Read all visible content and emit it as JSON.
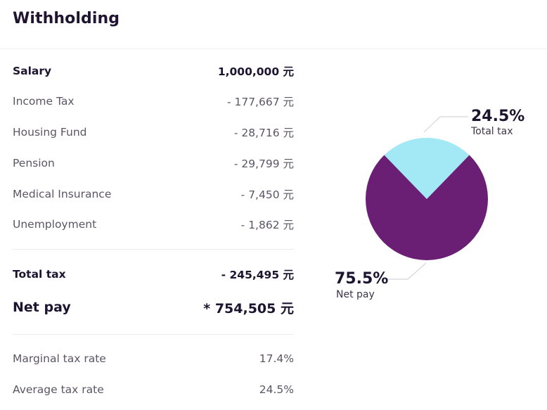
{
  "header": {
    "title": "Withholding"
  },
  "breakdown": {
    "salary": {
      "label": "Salary",
      "value": "1,000,000 元"
    },
    "deductions": [
      {
        "label": "Income Tax",
        "value": "- 177,667 元"
      },
      {
        "label": "Housing Fund",
        "value": "- 28,716 元"
      },
      {
        "label": "Pension",
        "value": "- 29,799 元"
      },
      {
        "label": "Medical Insurance",
        "value": "- 7,450 元"
      },
      {
        "label": "Unemployment",
        "value": "- 1,862 元"
      }
    ],
    "total_tax": {
      "label": "Total tax",
      "value": "- 245,495 元"
    },
    "net_pay": {
      "label": "Net pay",
      "value": "* 754,505 元"
    }
  },
  "rates": {
    "marginal": {
      "label": "Marginal tax rate",
      "value": "17.4%"
    },
    "average": {
      "label": "Average tax rate",
      "value": "24.5%"
    }
  },
  "colors": {
    "total_tax_slice": "#a2e8f5",
    "net_pay_slice": "#6a1f74"
  },
  "chart_data": {
    "type": "pie",
    "title": "",
    "slices": [
      {
        "name": "Total tax",
        "value": 24.5,
        "label": "24.5%",
        "color": "#a2e8f5"
      },
      {
        "name": "Net pay",
        "value": 75.5,
        "label": "75.5%",
        "color": "#6a1f74"
      }
    ]
  }
}
